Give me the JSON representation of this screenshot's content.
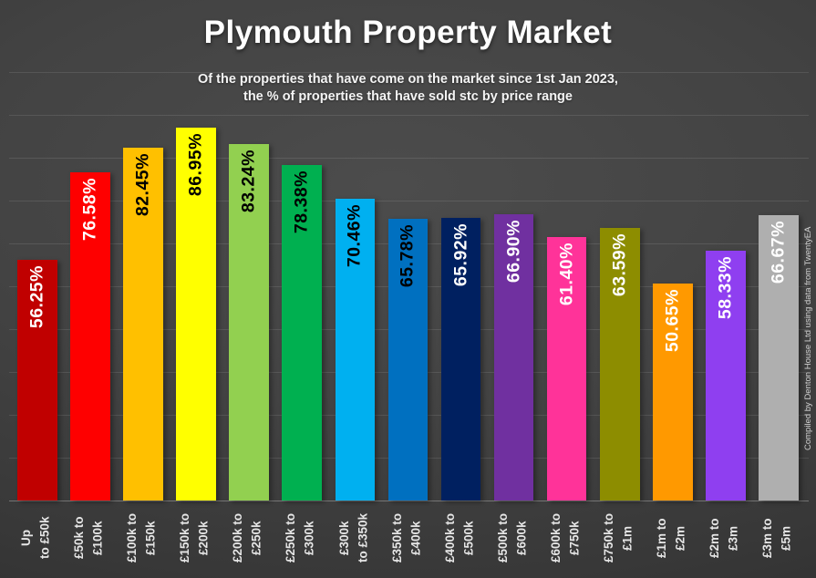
{
  "page": {
    "title": "Plymouth Property Market",
    "subtitle_line1": "Of the properties that have come on the market since 1st Jan 2023,",
    "subtitle_line2": "the % of properties that have sold stc by price range",
    "attribution": "Compiled by Denton House Ltd using data from TwentyEA"
  },
  "chart_data": {
    "type": "bar",
    "title": "Plymouth Property Market",
    "subtitle": "Of the properties that have come on the market since 1st Jan 2023, the % of properties that have sold stc by price range",
    "attribution": "Compiled by Denton House Ltd using data from TwentyEA",
    "ylim": [
      0,
      100
    ],
    "grid": true,
    "gridline_step": 10,
    "legend": false,
    "bar_labels_rotated": true,
    "categories": [
      "Up to £50k",
      "£50k to £100k",
      "£100k to £150k",
      "£150k to £200k",
      "£200k to £250k",
      "£250k to £300k",
      "£300k to £350k",
      "£350k to £400k",
      "£400k to £500k",
      "£500k to £600k",
      "£600k to £750k",
      "£750k to £1m",
      "£1m to £2m",
      "£2m to £3m",
      "£3m to £5m"
    ],
    "category_lines": [
      [
        "Up",
        "to £50k"
      ],
      [
        "£50k to",
        "£100k"
      ],
      [
        "£100k to",
        "£150k"
      ],
      [
        "£150k to",
        "£200k"
      ],
      [
        "£200k to",
        "£250k"
      ],
      [
        "£250k to",
        "£300k"
      ],
      [
        "£300k",
        "to £350k"
      ],
      [
        "£350k to",
        "£400k"
      ],
      [
        "£400k to",
        "£500k"
      ],
      [
        "£500k to",
        "£600k"
      ],
      [
        "£600k to",
        "£750k"
      ],
      [
        "£750k to",
        "£1m"
      ],
      [
        "£1m to",
        "£2m"
      ],
      [
        "£2m to",
        "£3m"
      ],
      [
        "£3m to",
        "£5m"
      ]
    ],
    "values": [
      56.25,
      76.58,
      82.45,
      86.95,
      83.24,
      78.38,
      70.46,
      65.78,
      65.92,
      66.9,
      61.4,
      63.59,
      50.65,
      58.33,
      66.67
    ],
    "labels": [
      "56.25%",
      "76.58%",
      "82.45%",
      "86.95%",
      "83.24%",
      "78.38%",
      "70.46%",
      "65.78%",
      "65.92%",
      "66.90%",
      "61.40%",
      "63.59%",
      "50.65%",
      "58.33%",
      "66.67%"
    ],
    "colors": [
      "#C00000",
      "#FE0000",
      "#FFC000",
      "#FFFF00",
      "#92D050",
      "#00B050",
      "#00B0F0",
      "#0070C0",
      "#002060",
      "#7030A0",
      "#FF3399",
      "#8D8D00",
      "#FF9900",
      "#8F3FF0",
      "#AFAFAF"
    ],
    "label_text_colors": [
      "#ffffff",
      "#ffffff",
      "#000000",
      "#000000",
      "#000000",
      "#000000",
      "#000000",
      "#000000",
      "#ffffff",
      "#ffffff",
      "#ffffff",
      "#ffffff",
      "#ffffff",
      "#ffffff",
      "#ffffff"
    ],
    "background_color": "#3f3f3f",
    "gridline_color": "rgba(255,255,255,0.10)"
  }
}
